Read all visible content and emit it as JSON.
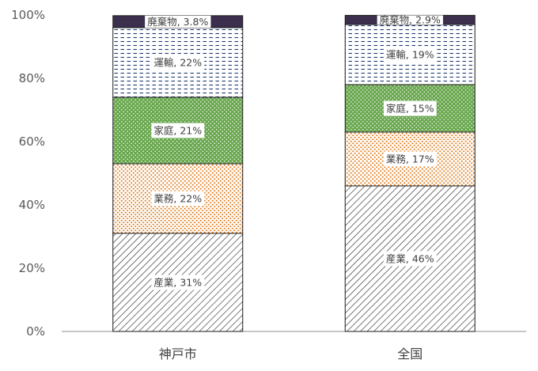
{
  "chart_data": {
    "type": "bar",
    "stacked": true,
    "percent": true,
    "categories": [
      "神戸市",
      "全国"
    ],
    "series": [
      {
        "name": "産業",
        "values": [
          31,
          46
        ],
        "label": [
          "産業, 31%",
          "産業, 46%"
        ]
      },
      {
        "name": "業務",
        "values": [
          22,
          17
        ],
        "label": [
          "業務, 22%",
          "業務, 17%"
        ]
      },
      {
        "name": "家庭",
        "values": [
          21,
          15
        ],
        "label": [
          "家庭, 21%",
          "家庭, 15%"
        ]
      },
      {
        "name": "運輸",
        "values": [
          22,
          19
        ],
        "label": [
          "運輸, 22%",
          "運輸, 19%"
        ]
      },
      {
        "name": "廃棄物",
        "values": [
          3.8,
          2.9
        ],
        "label": [
          "廃棄物, 3.8%",
          "廃棄物, 2.9%"
        ]
      }
    ],
    "series_colors": {
      "産業": "#ffffff",
      "業務": "#e07b1a",
      "家庭": "#6aa84f",
      "運輸": "#1f3b73",
      "廃棄物": "#3b2f4d"
    },
    "ylim": [
      0,
      100
    ],
    "yticks": [
      "0%",
      "20%",
      "40%",
      "60%",
      "80%",
      "100%"
    ],
    "grid": false,
    "legend": "none"
  }
}
